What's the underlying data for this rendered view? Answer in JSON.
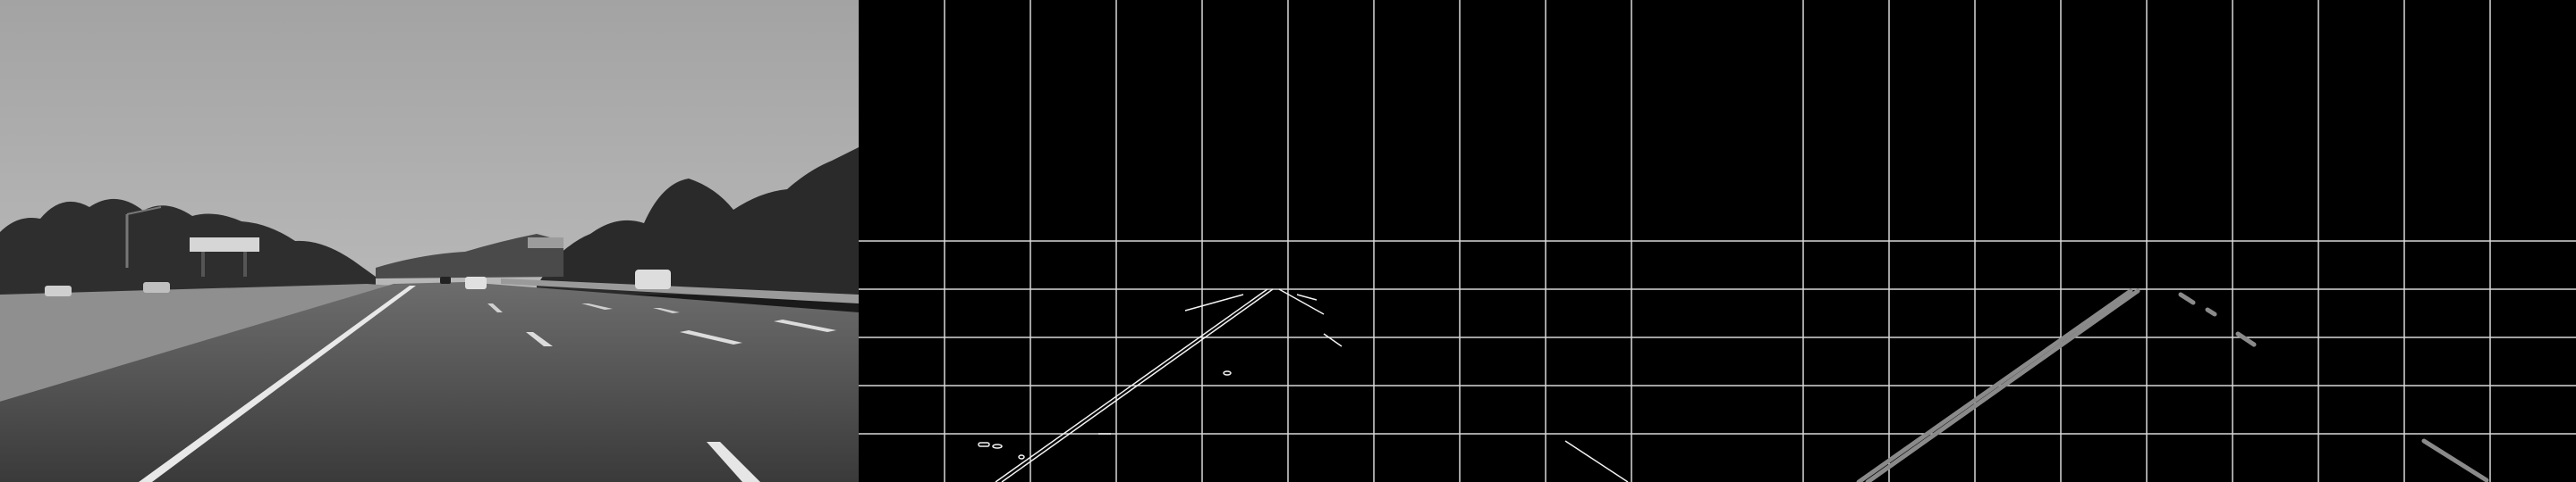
{
  "screen": {
    "panels": [
      {
        "id": "grayscale-road",
        "kind": "image"
      },
      {
        "id": "canny-edges-with-grid",
        "kind": "image"
      },
      {
        "id": "hough-lines-with-grid",
        "kind": "image"
      }
    ],
    "colors": {
      "background": "#000000",
      "grid": "#d8d8d8",
      "edges": "#f2f2f2",
      "hough": "#8a8a8a",
      "sky": "#a8a8a8",
      "road": "#3f3f3f",
      "vegetation": "#2b2b2b"
    }
  }
}
